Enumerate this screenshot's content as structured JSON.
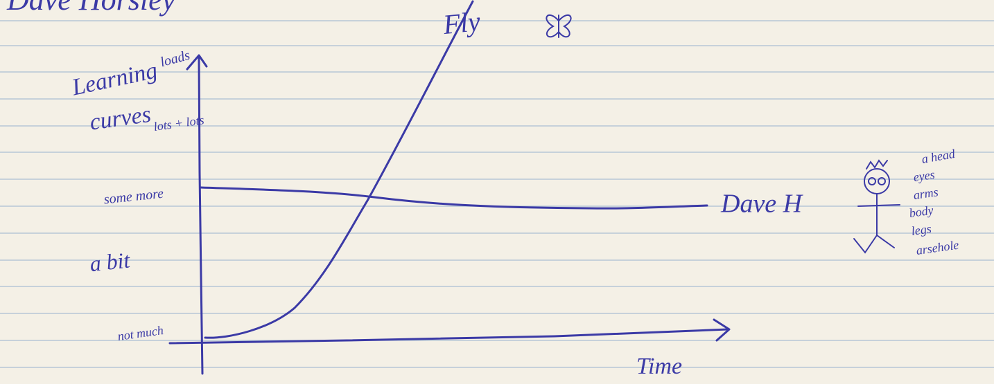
{
  "header": {
    "title": "Dave Horsley"
  },
  "axes": {
    "y_title": [
      "Learning",
      "curves"
    ],
    "y_levels": [
      "loads",
      "lots + lots",
      "some more",
      "a bit",
      "not much"
    ],
    "x_title": "Time"
  },
  "curves": [
    {
      "label": "Fly"
    },
    {
      "label": "Dave H"
    }
  ],
  "figure": {
    "labels": [
      "a head",
      "eyes",
      "arms",
      "body",
      "legs",
      "arsehole"
    ]
  }
}
